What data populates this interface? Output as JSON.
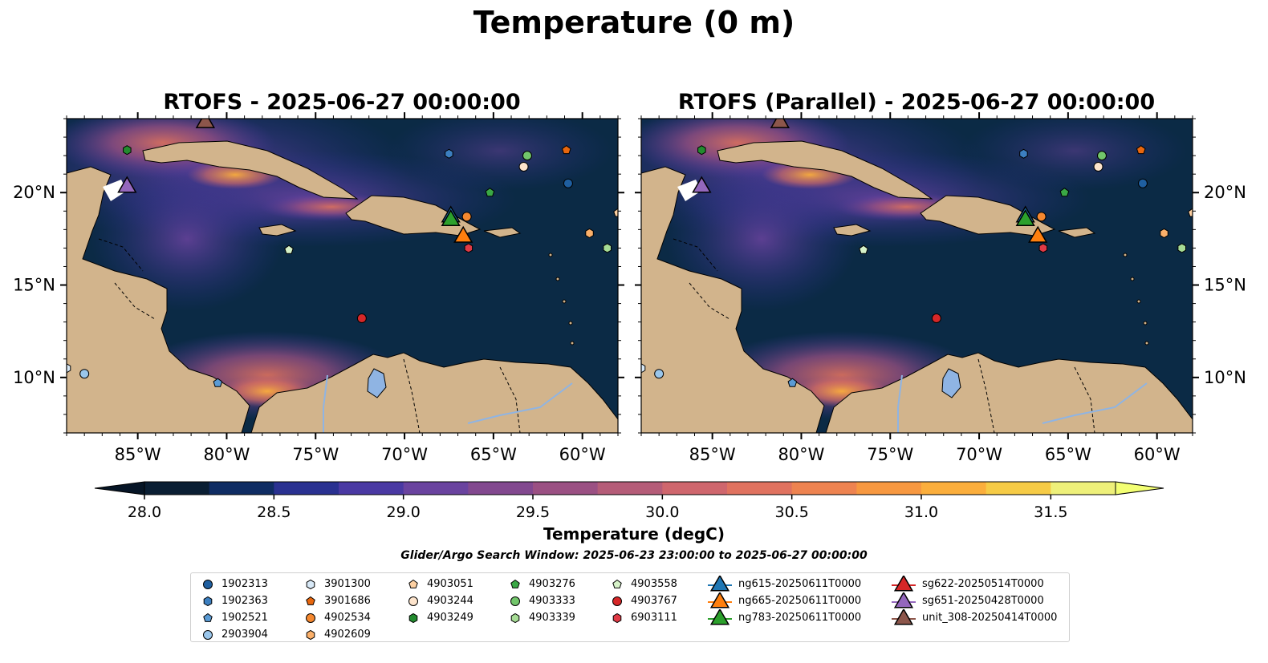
{
  "title": "Temperature (0 m)",
  "panels": [
    {
      "title": "RTOFS - 2025-06-27 00:00:00"
    },
    {
      "title": "RTOFS (Parallel) - 2025-06-27 00:00:00"
    }
  ],
  "map": {
    "lon_range": [
      -89,
      -58
    ],
    "lat_range": [
      7,
      24
    ],
    "lon_ticks": [
      {
        "value": -85,
        "label": "85°W"
      },
      {
        "value": -80,
        "label": "80°W"
      },
      {
        "value": -75,
        "label": "75°W"
      },
      {
        "value": -70,
        "label": "70°W"
      },
      {
        "value": -65,
        "label": "65°W"
      },
      {
        "value": -60,
        "label": "60°W"
      }
    ],
    "lat_ticks": [
      {
        "value": 20,
        "label": "20°N"
      },
      {
        "value": 15,
        "label": "15°N"
      },
      {
        "value": 10,
        "label": "10°N"
      }
    ],
    "colors": {
      "ocean": "#0b2a45",
      "land": "#d2b48c",
      "lake": "#8fb4e3"
    }
  },
  "colorbar": {
    "label": "Temperature (degC)",
    "min": 28.0,
    "max": 31.75,
    "ticks": [
      "28.0",
      "28.5",
      "29.0",
      "29.5",
      "30.0",
      "30.5",
      "31.0",
      "31.5"
    ],
    "colors": [
      "#0a1e33",
      "#0f2c63",
      "#2a3191",
      "#4a39a3",
      "#6a439f",
      "#82488f",
      "#9b5083",
      "#b55c78",
      "#cf666d",
      "#e0725f",
      "#ee8350",
      "#f79840",
      "#fbae3c",
      "#f6cb46",
      "#eef07a"
    ]
  },
  "search_window": "Glider/Argo Search Window: 2025-06-23 23:00:00 to 2025-06-27 00:00:00",
  "legend": {
    "columns": [
      [
        {
          "label": "1902313",
          "marker": "circle",
          "color": "#1f5fa0"
        },
        {
          "label": "1902363",
          "marker": "hexagon",
          "color": "#3c7fc0"
        },
        {
          "label": "1902521",
          "marker": "pentagon",
          "color": "#5a9bd5"
        },
        {
          "label": "2903904",
          "marker": "circle",
          "color": "#9ac6eb"
        }
      ],
      [
        {
          "label": "3901300",
          "marker": "hexagon",
          "color": "#d8e9f7"
        },
        {
          "label": "3901686",
          "marker": "pentagon",
          "color": "#e8670e"
        },
        {
          "label": "4902534",
          "marker": "circle",
          "color": "#f5882f"
        },
        {
          "label": "4902609",
          "marker": "hexagon",
          "color": "#fbb06a"
        }
      ],
      [
        {
          "label": "4903051",
          "marker": "pentagon",
          "color": "#fdd0a2"
        },
        {
          "label": "4903244",
          "marker": "circle",
          "color": "#fde4cc"
        },
        {
          "label": "4903249",
          "marker": "hexagon",
          "color": "#238b2f"
        }
      ],
      [
        {
          "label": "4903276",
          "marker": "pentagon",
          "color": "#3aa845"
        },
        {
          "label": "4903333",
          "marker": "circle",
          "color": "#72c66b"
        },
        {
          "label": "4903339",
          "marker": "hexagon",
          "color": "#a6dc95"
        }
      ],
      [
        {
          "label": "4903558",
          "marker": "pentagon",
          "color": "#d6f2c8"
        },
        {
          "label": "4903767",
          "marker": "circle",
          "color": "#d62728"
        },
        {
          "label": "6903111",
          "marker": "hexagon",
          "color": "#e03a46"
        }
      ],
      [
        {
          "label": "ng615-20250611T0000",
          "marker": "triangle",
          "color": "#1f77b4"
        },
        {
          "label": "ng665-20250611T0000",
          "marker": "triangle",
          "color": "#ff7f0e"
        },
        {
          "label": "ng783-20250611T0000",
          "marker": "triangle",
          "color": "#2ca02c"
        }
      ],
      [
        {
          "label": "sg622-20250514T0000",
          "marker": "triangle",
          "color": "#d62728"
        },
        {
          "label": "sg651-20250428T0000",
          "marker": "triangle",
          "color": "#9467bd"
        },
        {
          "label": "unit_308-20250414T0000",
          "marker": "triangle",
          "color": "#8c564b"
        }
      ]
    ]
  },
  "observations": [
    {
      "id": "1902313",
      "lon": -60.8,
      "lat": 20.5
    },
    {
      "id": "1902363",
      "lon": -67.5,
      "lat": 22.1
    },
    {
      "id": "1902521",
      "lon": -80.5,
      "lat": 9.7
    },
    {
      "id": "2903904",
      "lon": -88.0,
      "lat": 10.2
    },
    {
      "id": "3901300",
      "lon": -89.0,
      "lat": 10.5
    },
    {
      "id": "3901686",
      "lon": -60.9,
      "lat": 22.3
    },
    {
      "id": "4902534",
      "lon": -66.5,
      "lat": 18.7
    },
    {
      "id": "4902609",
      "lon": -59.6,
      "lat": 17.8
    },
    {
      "id": "4903051",
      "lon": -58.0,
      "lat": 18.9
    },
    {
      "id": "4903244",
      "lon": -63.3,
      "lat": 21.4
    },
    {
      "id": "4903249",
      "lon": -85.6,
      "lat": 22.3
    },
    {
      "id": "4903276",
      "lon": -65.2,
      "lat": 20.0
    },
    {
      "id": "4903333",
      "lon": -63.1,
      "lat": 22.0
    },
    {
      "id": "4903339",
      "lon": -58.6,
      "lat": 17.0
    },
    {
      "id": "4903558",
      "lon": -76.5,
      "lat": 16.9
    },
    {
      "id": "4903767",
      "lon": -72.4,
      "lat": 13.2
    },
    {
      "id": "6903111",
      "lon": -66.4,
      "lat": 17.0
    },
    {
      "id": "ng615-20250611T0000",
      "lon": -67.4,
      "lat": 18.8
    },
    {
      "id": "ng783-20250611T0000",
      "lon": -67.4,
      "lat": 18.6
    },
    {
      "id": "ng665-20250611T0000",
      "lon": -66.7,
      "lat": 17.7
    },
    {
      "id": "sg651-20250428T0000",
      "lon": -85.6,
      "lat": 20.4
    },
    {
      "id": "unit_308-20250414T0000",
      "lon": -81.2,
      "lat": 23.9
    }
  ]
}
